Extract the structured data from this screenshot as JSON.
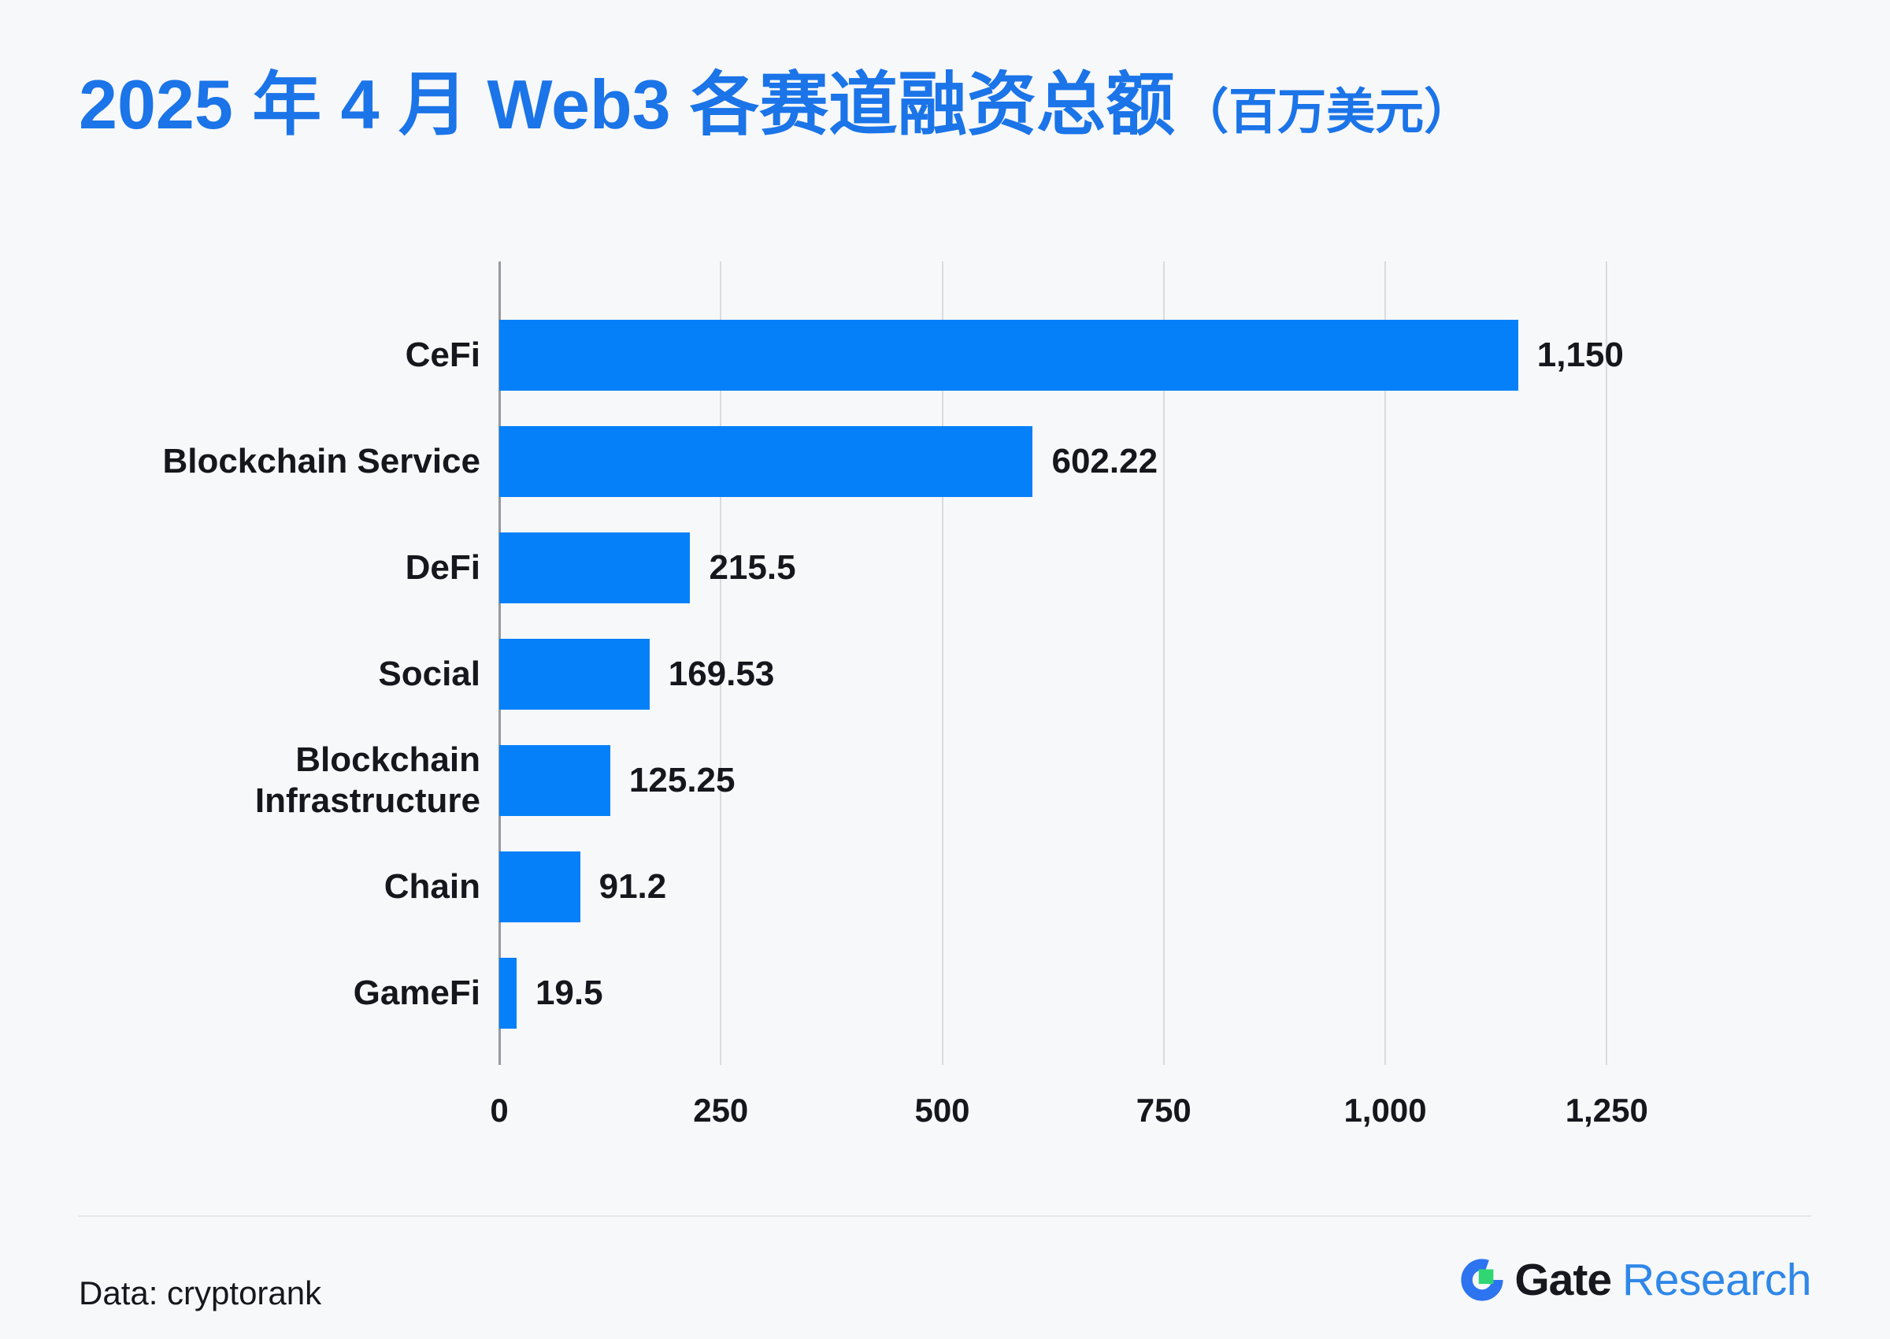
{
  "title": {
    "main": "2025 年 4 月 Web3 各赛道融资总额",
    "unit": "（百万美元）"
  },
  "chart_data": {
    "type": "bar",
    "orientation": "horizontal",
    "title": "2025 年 4 月 Web3 各赛道融资总额（百万美元）",
    "categories": [
      "CeFi",
      "Blockchain Service",
      "DeFi",
      "Social",
      "Blockchain Infrastructure",
      "Chain",
      "GameFi"
    ],
    "values": [
      1150,
      602.22,
      215.5,
      169.53,
      125.25,
      91.2,
      19.5
    ],
    "value_labels": [
      "1,150",
      "602.22",
      "215.5",
      "169.53",
      "125.25",
      "91.2",
      "19.5"
    ],
    "xlabel": "",
    "ylabel": "",
    "xlim": [
      0,
      1250
    ],
    "x_ticks": [
      0,
      250,
      500,
      750,
      1000,
      1250
    ],
    "x_tick_labels": [
      "0",
      "250",
      "500",
      "750",
      "1,000",
      "1,250"
    ],
    "grid": "vertical-only",
    "legend": "none",
    "bar_color": "#0580F8"
  },
  "footer": {
    "source": "Data: cryptorank",
    "brand": {
      "name": "Gate",
      "suffix": "Research"
    }
  },
  "colors": {
    "background": "#F7F8FA",
    "title_blue": "#1B74E8",
    "bar_blue": "#0580F8",
    "text_dark": "#15171C",
    "gridline": "#D9DBDE",
    "zero_line": "#97999E",
    "divider": "#E5E7EA",
    "brand_dark": "#16181D",
    "brand_blue": "#2F87E8",
    "logo_ring_blue": "#2D74F0",
    "logo_green": "#2FD672"
  }
}
